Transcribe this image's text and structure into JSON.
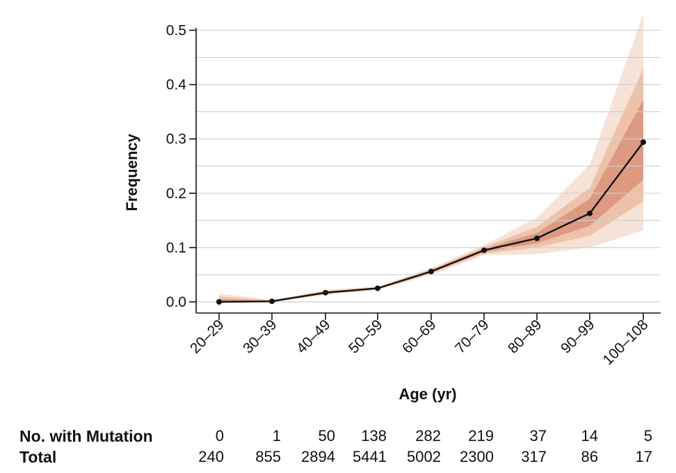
{
  "chart_data": {
    "type": "line",
    "xlabel": "Age (yr)",
    "ylabel": "Frequency",
    "ylim": [
      0,
      0.5
    ],
    "y_ticks": [
      "0.0",
      "0.1",
      "0.2",
      "0.3",
      "0.4",
      "0.5"
    ],
    "grid": true,
    "categories": [
      "20–29",
      "30–39",
      "40–49",
      "50–59",
      "60–69",
      "70–79",
      "80–89",
      "90–99",
      "100–108"
    ],
    "values": [
      0.0,
      0.001,
      0.017,
      0.025,
      0.056,
      0.095,
      0.117,
      0.163,
      0.294
    ],
    "uncertainty_bands": [
      {
        "level": "outer",
        "color": "#f6e2d6",
        "lower": [
          0.0,
          0.0,
          0.013,
          0.022,
          0.05,
          0.086,
          0.088,
          0.1,
          0.132
        ],
        "upper": [
          0.015,
          0.004,
          0.022,
          0.029,
          0.062,
          0.105,
          0.155,
          0.253,
          0.53
        ]
      },
      {
        "level": "middle",
        "color": "#eec2a8",
        "lower": [
          0.0,
          0.0,
          0.014,
          0.023,
          0.052,
          0.089,
          0.1,
          0.122,
          0.185
        ],
        "upper": [
          0.01,
          0.003,
          0.02,
          0.027,
          0.06,
          0.101,
          0.138,
          0.21,
          0.43
        ]
      },
      {
        "level": "inner",
        "color": "#dc9a83",
        "lower": [
          0.0,
          0.0,
          0.015,
          0.024,
          0.054,
          0.092,
          0.108,
          0.14,
          0.225
        ],
        "upper": [
          0.005,
          0.002,
          0.019,
          0.026,
          0.058,
          0.098,
          0.127,
          0.19,
          0.372
        ]
      }
    ],
    "line_color": "#111111"
  },
  "table": {
    "rows": [
      {
        "label": "No. with Mutation",
        "values": [
          "0",
          "1",
          "50",
          "138",
          "282",
          "219",
          "37",
          "14",
          "5"
        ]
      },
      {
        "label": "Total",
        "values": [
          "240",
          "855",
          "2894",
          "5441",
          "5002",
          "2300",
          "317",
          "86",
          "17"
        ]
      }
    ]
  }
}
